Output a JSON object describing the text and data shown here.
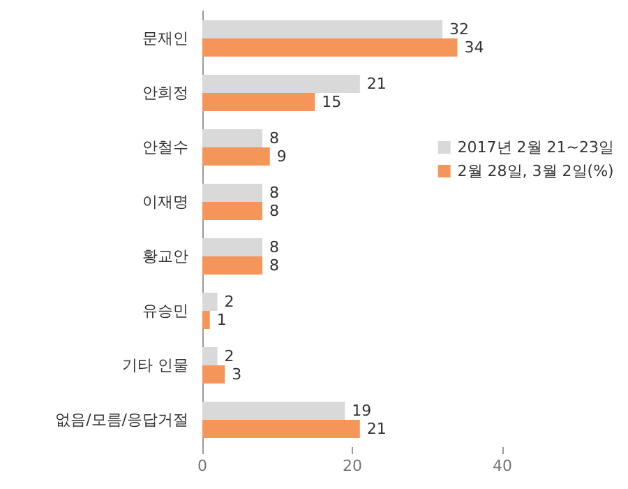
{
  "chart_data": {
    "type": "bar",
    "orientation": "horizontal",
    "categories": [
      "문재인",
      "안희정",
      "안철수",
      "이재명",
      "황교안",
      "유승민",
      "기타 인물",
      "없음/모름/응답거절"
    ],
    "series": [
      {
        "name": "2017년 2월 21~23일",
        "color": "#d9d9d9",
        "values": [
          32,
          21,
          8,
          8,
          8,
          2,
          2,
          19
        ]
      },
      {
        "name": "2월 28일, 3월 2일(%)",
        "color": "#f4955a",
        "values": [
          34,
          15,
          9,
          8,
          8,
          1,
          3,
          21
        ]
      }
    ],
    "xlim": [
      0,
      40
    ],
    "xticks": [
      0,
      20,
      40
    ],
    "data_labels": true,
    "legend": "right",
    "grid": false
  }
}
